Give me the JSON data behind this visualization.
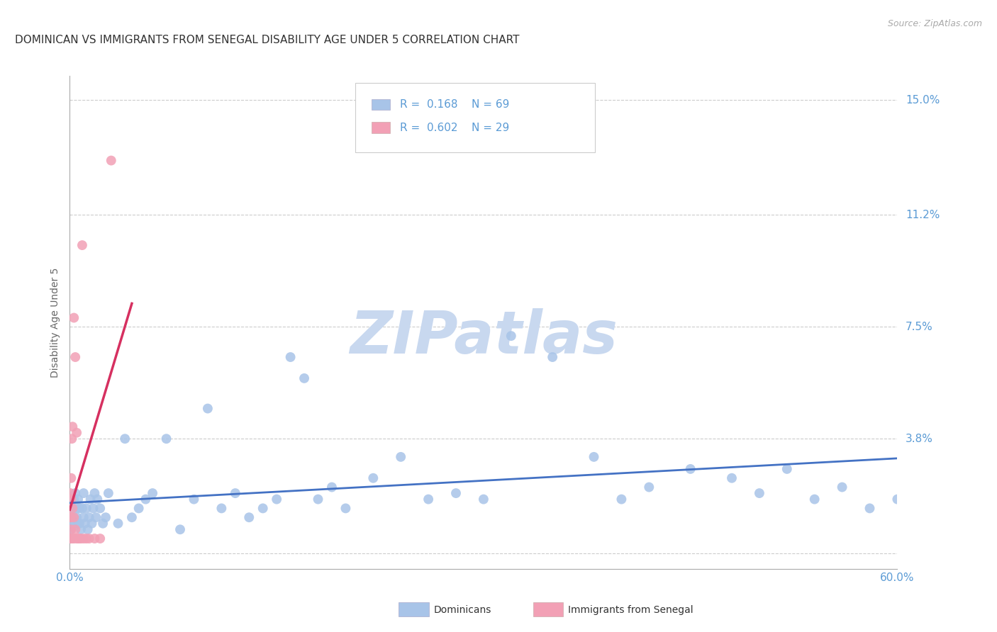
{
  "title": "DOMINICAN VS IMMIGRANTS FROM SENEGAL DISABILITY AGE UNDER 5 CORRELATION CHART",
  "source": "Source: ZipAtlas.com",
  "ylabel": "Disability Age Under 5",
  "watermark": "ZIPatlas",
  "xlim": [
    0.0,
    0.6
  ],
  "ylim": [
    -0.005,
    0.158
  ],
  "yticks": [
    0.0,
    0.038,
    0.075,
    0.112,
    0.15
  ],
  "ytick_labels": [
    "3.8%",
    "7.5%",
    "11.2%",
    "15.0%"
  ],
  "xtick_labels": [
    "0.0%",
    "60.0%"
  ],
  "xtick_positions": [
    0.0,
    0.6
  ],
  "blue_color": "#a8c4e8",
  "pink_color": "#f2a0b5",
  "blue_line_color": "#4472c4",
  "pink_line_color": "#d63060",
  "blue_R": 0.168,
  "blue_N": 69,
  "pink_R": 0.602,
  "pink_N": 29,
  "legend_blue_label": "Dominicans",
  "legend_pink_label": "Immigrants from Senegal",
  "blue_points_x": [
    0.001,
    0.002,
    0.002,
    0.003,
    0.003,
    0.004,
    0.004,
    0.005,
    0.005,
    0.006,
    0.006,
    0.007,
    0.007,
    0.008,
    0.009,
    0.01,
    0.01,
    0.011,
    0.012,
    0.013,
    0.014,
    0.015,
    0.016,
    0.017,
    0.018,
    0.019,
    0.02,
    0.022,
    0.024,
    0.026,
    0.028,
    0.035,
    0.04,
    0.045,
    0.05,
    0.055,
    0.06,
    0.07,
    0.08,
    0.09,
    0.1,
    0.11,
    0.12,
    0.13,
    0.14,
    0.15,
    0.16,
    0.17,
    0.18,
    0.19,
    0.2,
    0.22,
    0.24,
    0.26,
    0.28,
    0.3,
    0.32,
    0.35,
    0.38,
    0.4,
    0.42,
    0.45,
    0.48,
    0.5,
    0.52,
    0.54,
    0.56,
    0.58,
    0.6
  ],
  "blue_points_y": [
    0.008,
    0.015,
    0.01,
    0.012,
    0.018,
    0.01,
    0.02,
    0.012,
    0.015,
    0.01,
    0.018,
    0.015,
    0.01,
    0.008,
    0.015,
    0.012,
    0.02,
    0.01,
    0.015,
    0.008,
    0.012,
    0.018,
    0.01,
    0.015,
    0.02,
    0.012,
    0.018,
    0.015,
    0.01,
    0.012,
    0.02,
    0.01,
    0.038,
    0.012,
    0.015,
    0.018,
    0.02,
    0.038,
    0.008,
    0.018,
    0.048,
    0.015,
    0.02,
    0.012,
    0.015,
    0.018,
    0.065,
    0.058,
    0.018,
    0.022,
    0.015,
    0.025,
    0.032,
    0.018,
    0.02,
    0.018,
    0.072,
    0.065,
    0.032,
    0.018,
    0.022,
    0.028,
    0.025,
    0.02,
    0.028,
    0.018,
    0.022,
    0.015,
    0.018
  ],
  "pink_points_x": [
    0.0005,
    0.0005,
    0.0005,
    0.0008,
    0.001,
    0.001,
    0.001,
    0.001,
    0.0015,
    0.002,
    0.002,
    0.002,
    0.003,
    0.003,
    0.003,
    0.004,
    0.004,
    0.005,
    0.005,
    0.006,
    0.007,
    0.008,
    0.009,
    0.01,
    0.012,
    0.014,
    0.018,
    0.022,
    0.03
  ],
  "pink_points_y": [
    0.005,
    0.012,
    0.02,
    0.008,
    0.005,
    0.012,
    0.018,
    0.025,
    0.038,
    0.005,
    0.015,
    0.042,
    0.005,
    0.012,
    0.078,
    0.008,
    0.065,
    0.005,
    0.04,
    0.005,
    0.005,
    0.005,
    0.102,
    0.005,
    0.005,
    0.005,
    0.005,
    0.005,
    0.13
  ],
  "background_color": "#ffffff",
  "grid_color": "#cccccc",
  "title_color": "#333333",
  "axis_label_color": "#666666",
  "tick_label_color": "#5b9bd5",
  "title_fontsize": 11,
  "source_fontsize": 9,
  "ylabel_fontsize": 10,
  "tick_fontsize": 11,
  "legend_fontsize": 11,
  "watermark_color": "#c8d8ef",
  "watermark_fontsize": 60
}
